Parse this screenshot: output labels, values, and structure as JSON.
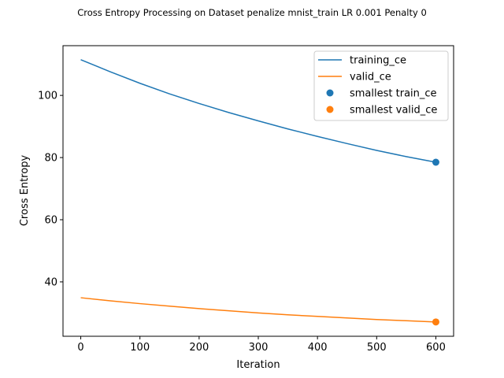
{
  "chart_data": {
    "type": "line",
    "title": "Cross Entropy Processing on Dataset penalize mnist_train LR 0.001 Penalty 0",
    "xlabel": "Iteration",
    "ylabel": "Cross Entropy",
    "xlim": [
      -30,
      630
    ],
    "ylim": [
      22.5,
      116
    ],
    "xticks": [
      0,
      100,
      200,
      300,
      400,
      500,
      600
    ],
    "yticks": [
      40,
      60,
      80,
      100
    ],
    "grid": false,
    "legend_position": "upper right",
    "series": [
      {
        "name": "training_ce",
        "kind": "line",
        "color": "#1f77b4",
        "x": [
          0,
          50,
          100,
          150,
          200,
          250,
          300,
          350,
          400,
          450,
          500,
          550,
          600
        ],
        "y": [
          111.5,
          107.6,
          103.9,
          100.5,
          97.4,
          94.5,
          91.8,
          89.2,
          86.8,
          84.5,
          82.3,
          80.3,
          78.5
        ]
      },
      {
        "name": "valid_ce",
        "kind": "line",
        "color": "#ff7f0e",
        "x": [
          0,
          50,
          100,
          150,
          200,
          250,
          300,
          350,
          400,
          450,
          500,
          550,
          600
        ],
        "y": [
          34.9,
          33.9,
          33.0,
          32.2,
          31.4,
          30.7,
          30.0,
          29.4,
          28.9,
          28.4,
          27.9,
          27.5,
          27.1
        ]
      },
      {
        "name": "smallest train_ce",
        "kind": "scatter",
        "color": "#1f77b4",
        "x": [
          600
        ],
        "y": [
          78.5
        ]
      },
      {
        "name": "smallest valid_ce",
        "kind": "scatter",
        "color": "#ff7f0e",
        "x": [
          600
        ],
        "y": [
          27.1
        ]
      }
    ]
  }
}
